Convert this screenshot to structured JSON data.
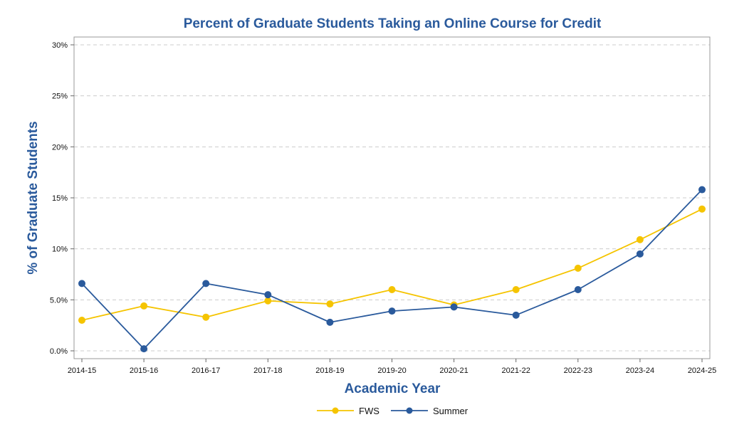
{
  "chart_data": {
    "type": "line",
    "title": "Percent of Graduate Students Taking an Online Course for Credit",
    "xlabel": "Academic Year",
    "ylabel": "% of Graduate Students",
    "categories": [
      "2014-15",
      "2015-16",
      "2016-17",
      "2017-18",
      "2018-19",
      "2019-20",
      "2020-21",
      "2021-22",
      "2022-23",
      "2023-24",
      "2024-25"
    ],
    "ylim": [
      0,
      30
    ],
    "yticks": [
      0,
      5,
      10,
      15,
      20,
      25,
      30
    ],
    "ytick_labels": [
      "0.0%",
      "5.0%",
      "10%",
      "15%",
      "20%",
      "25%",
      "30%"
    ],
    "grid": true,
    "legend_position": "bottom-center",
    "series": [
      {
        "name": "FWS",
        "color": "#f5c400",
        "values": [
          3.0,
          4.4,
          3.3,
          4.9,
          4.6,
          6.0,
          4.5,
          6.0,
          8.1,
          10.9,
          13.9
        ]
      },
      {
        "name": "Summer",
        "color": "#2a5a9c",
        "values": [
          6.6,
          0.2,
          6.6,
          5.5,
          2.8,
          3.9,
          4.3,
          3.5,
          6.0,
          9.5,
          15.8
        ]
      }
    ]
  }
}
